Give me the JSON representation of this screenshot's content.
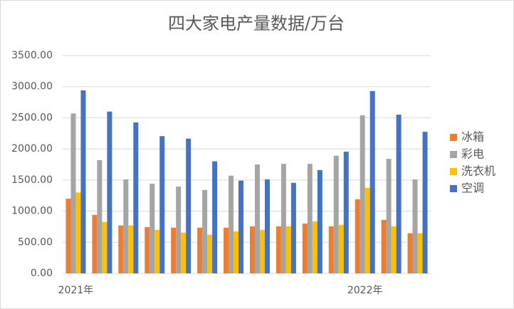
{
  "chart_data": {
    "type": "bar",
    "title": "四大家电产量数据/万台",
    "categories": [
      "2021年",
      null,
      null,
      null,
      null,
      null,
      null,
      null,
      null,
      null,
      null,
      "2022年",
      null,
      null
    ],
    "series": [
      {
        "name": "冰箱",
        "color": "#ed7d31",
        "values": [
          1200,
          940,
          770,
          745,
          735,
          735,
          735,
          755,
          755,
          800,
          755,
          1190,
          860,
          645
        ]
      },
      {
        "name": "彩电",
        "color": "#a5a5a5",
        "values": [
          2570,
          1820,
          1510,
          1440,
          1395,
          1340,
          1570,
          1750,
          1760,
          1760,
          1890,
          2540,
          1840,
          1510
        ]
      },
      {
        "name": "洗衣机",
        "color": "#ffc000",
        "values": [
          1300,
          825,
          770,
          700,
          655,
          620,
          675,
          700,
          755,
          835,
          780,
          1375,
          755,
          645
        ]
      },
      {
        "name": "空调",
        "color": "#4472c4",
        "values": [
          2940,
          2600,
          2425,
          2205,
          2165,
          1800,
          1490,
          1510,
          1455,
          1660,
          1955,
          2930,
          2550,
          2275
        ]
      }
    ],
    "ylim": [
      0,
      3500
    ],
    "yticks": [
      {
        "value": 0,
        "label": "0.00"
      },
      {
        "value": 500,
        "label": "500.00"
      },
      {
        "value": 1000,
        "label": "1000.00"
      },
      {
        "value": 1500,
        "label": "1500.00"
      },
      {
        "value": 2000,
        "label": "2000.00"
      },
      {
        "value": 2500,
        "label": "2500.00"
      },
      {
        "value": 3000,
        "label": "3000.00"
      },
      {
        "value": 3500,
        "label": "3500.00"
      }
    ],
    "grid": true,
    "legend": "right"
  }
}
